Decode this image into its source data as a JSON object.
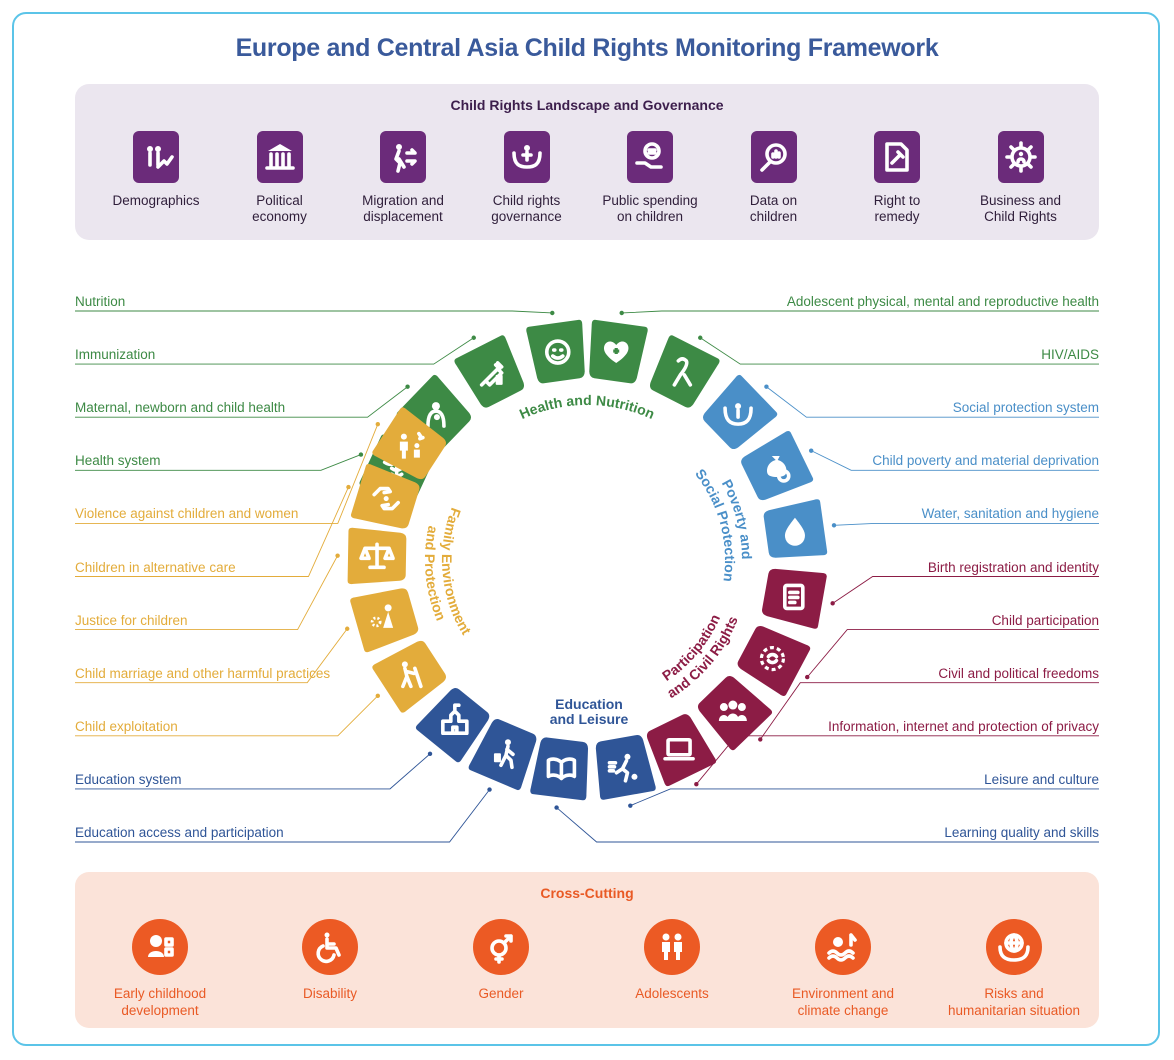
{
  "title": "Europe and Central Asia Child Rights Monitoring Framework",
  "colors": {
    "frame": "#5bc4e8",
    "title": "#3a5a9b",
    "governance": "#6b2b7a",
    "health": "#3d8a45",
    "poverty": "#4a8fc8",
    "participation": "#8c1c45",
    "education": "#2f5597",
    "family": "#e3ac3b",
    "crosscutting": "#ec5a24"
  },
  "governance": {
    "title": "Child Rights Landscape and Governance",
    "items": [
      {
        "label": "Demographics",
        "icon": "family-growth-icon"
      },
      {
        "label": "Political\neconomy",
        "icon": "government-building-icon"
      },
      {
        "label": "Migration and\ndisplacement",
        "icon": "migration-arrows-icon"
      },
      {
        "label": "Child rights\ngovernance",
        "icon": "hands-child-icon"
      },
      {
        "label": "Public spending\non children",
        "icon": "hand-coin-icon"
      },
      {
        "label": "Data on\nchildren",
        "icon": "magnifier-chart-icon"
      },
      {
        "label": "Right to\nremedy",
        "icon": "gavel-document-icon"
      },
      {
        "label": "Business and\nChild Rights",
        "icon": "gear-person-icon"
      }
    ]
  },
  "groups": {
    "health": "Health and Nutrition",
    "poverty": "Poverty and\nSocial Protection",
    "participation": "Participation\nand Civil Rights",
    "education": "Education\nand Leisure",
    "family": "Family Environment\nand Protection"
  },
  "left_labels": [
    {
      "text": "Nutrition",
      "group": "health"
    },
    {
      "text": "Immunization",
      "group": "health"
    },
    {
      "text": "Maternal, newborn and child health",
      "group": "health"
    },
    {
      "text": "Health system",
      "group": "health"
    },
    {
      "text": "Violence against children and women",
      "group": "family"
    },
    {
      "text": "Children in alternative care",
      "group": "family"
    },
    {
      "text": "Justice for children",
      "group": "family"
    },
    {
      "text": "Child marriage and other harmful practices",
      "group": "family"
    },
    {
      "text": "Child exploitation",
      "group": "family"
    },
    {
      "text": "Education system",
      "group": "education"
    },
    {
      "text": "Education access and participation",
      "group": "education"
    }
  ],
  "right_labels": [
    {
      "text": "Adolescent physical, mental and reproductive health",
      "group": "health"
    },
    {
      "text": "HIV/AIDS",
      "group": "health"
    },
    {
      "text": "Social protection system",
      "group": "poverty"
    },
    {
      "text": "Child poverty and material deprivation",
      "group": "poverty"
    },
    {
      "text": "Water, sanitation and hygiene",
      "group": "poverty"
    },
    {
      "text": "Birth registration and identity",
      "group": "participation"
    },
    {
      "text": "Child participation",
      "group": "participation"
    },
    {
      "text": "Civil and political freedoms",
      "group": "participation"
    },
    {
      "text": "Information, internet and protection of privacy",
      "group": "participation"
    },
    {
      "text": "Leisure and culture",
      "group": "education"
    },
    {
      "text": "Learning quality and skills",
      "group": "education"
    }
  ],
  "crosscutting": {
    "title": "Cross-Cutting",
    "items": [
      {
        "label": "Early childhood\ndevelopment",
        "icon": "baby-blocks-icon"
      },
      {
        "label": "Disability",
        "icon": "wheelchair-icon"
      },
      {
        "label": "Gender",
        "icon": "gender-symbol-icon"
      },
      {
        "label": "Adolescents",
        "icon": "two-teens-icon"
      },
      {
        "label": "Environment and\nclimate change",
        "icon": "sun-waves-icon"
      },
      {
        "label": "Risks and\nhumanitarian situation",
        "icon": "hands-globe-icon"
      }
    ]
  }
}
